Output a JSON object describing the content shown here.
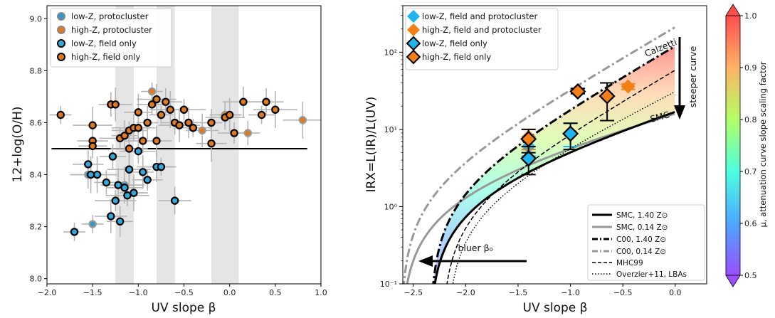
{
  "chart_data": [
    {
      "type": "scatter",
      "xlabel": "UV slope β",
      "ylabel": "12+log(O/H)",
      "xlim": [
        -2.0,
        1.0
      ],
      "ylim": [
        7.98,
        9.05
      ],
      "xticks": [
        -2.0,
        -1.5,
        -1.0,
        -0.5,
        0.0,
        0.5,
        1.0
      ],
      "yticks": [
        8.0,
        8.2,
        8.4,
        8.6,
        8.8,
        9.0
      ],
      "xtick_labels": [
        "−2.0",
        "−1.5",
        "−1.0",
        "−0.5",
        "0.0",
        "0.5",
        "1.0"
      ],
      "ytick_labels": [
        "8.0",
        "8.2",
        "8.4",
        "8.6",
        "8.8",
        "9.0"
      ],
      "hline": {
        "y": 8.5,
        "xrange": [
          -1.95,
          0.85
        ]
      },
      "bands": [
        [
          -1.25,
          -1.05
        ],
        [
          -0.8,
          -0.6
        ],
        [
          -0.2,
          0.1
        ]
      ],
      "legend_position": "upper left",
      "legend": [
        {
          "label": "low-Z, protocluster",
          "fill": "#3399cc",
          "edge": "#888888"
        },
        {
          "label": "high-Z, protocluster",
          "fill": "#e07a1f",
          "edge": "#888888"
        },
        {
          "label": "low-Z, field only",
          "fill": "#33aadd",
          "edge": "#000000"
        },
        {
          "label": "high-Z, field only",
          "fill": "#e07a1f",
          "edge": "#000000"
        }
      ],
      "series": [
        {
          "name": "low-Z, protocluster",
          "x": [
            -1.5,
            -1.55,
            -1.15,
            -1.05,
            -1.1
          ],
          "y": [
            8.21,
            8.4,
            8.36,
            8.33,
            8.42
          ]
        },
        {
          "name": "high-Z, protocluster",
          "x": [
            -0.85,
            -0.05,
            0.8,
            0.2,
            -0.3,
            -0.55
          ],
          "y": [
            8.72,
            8.63,
            8.61,
            8.56,
            8.57,
            8.59
          ]
        },
        {
          "name": "low-Z, field only",
          "x": [
            -1.7,
            -1.55,
            -1.45,
            -1.35,
            -1.3,
            -1.25,
            -1.2,
            -1.15,
            -1.1,
            -1.05,
            -1.0,
            -0.95,
            -0.9,
            -0.8,
            -0.75,
            -0.6,
            -1.52,
            -1.28,
            -1.22,
            -1.12
          ],
          "y": [
            8.18,
            8.44,
            8.4,
            8.37,
            8.24,
            8.3,
            8.22,
            8.35,
            8.42,
            8.33,
            8.49,
            8.41,
            8.38,
            8.43,
            8.43,
            8.3,
            8.4,
            8.47,
            8.36,
            8.32
          ]
        },
        {
          "name": "high-Z, field only",
          "x": [
            -1.85,
            -1.5,
            -1.5,
            -1.3,
            -1.25,
            -1.2,
            -1.15,
            -1.1,
            -1.05,
            -1.0,
            -0.95,
            -0.9,
            -0.85,
            -0.8,
            -0.75,
            -0.7,
            -0.65,
            -0.6,
            -0.55,
            -0.5,
            -0.45,
            -0.4,
            -0.2,
            -0.2,
            -0.05,
            0.0,
            0.05,
            0.15,
            0.35,
            0.4,
            0.5,
            -1.5,
            -1.1,
            -1.0,
            -0.8
          ],
          "y": [
            8.63,
            8.53,
            8.59,
            8.67,
            8.67,
            8.54,
            8.55,
            8.57,
            8.58,
            8.64,
            8.53,
            8.6,
            8.67,
            8.69,
            8.63,
            8.68,
            8.65,
            8.6,
            8.59,
            8.65,
            8.6,
            8.58,
            8.6,
            8.52,
            8.62,
            8.63,
            8.56,
            8.68,
            8.63,
            8.68,
            8.65,
            8.51,
            8.5,
            8.58,
            8.53
          ]
        }
      ]
    },
    {
      "type": "line",
      "xlabel": "UV slope β",
      "ylabel": "IRX=L(IR)/L(UV)",
      "xlim": [
        -2.6,
        0.3
      ],
      "ylim": [
        0.1,
        400
      ],
      "yscale": "log",
      "xticks": [
        -2.5,
        -2.0,
        -1.5,
        -1.0,
        -0.5,
        0.0
      ],
      "xtick_labels": [
        "−2.5",
        "−2.0",
        "−1.5",
        "−1.0",
        "−0.5",
        "0.0"
      ],
      "yticks": [
        0.1,
        1,
        10,
        100
      ],
      "ytick_labels": [
        "10⁻¹",
        "10⁰",
        "10¹",
        "10²"
      ],
      "colorbar": {
        "label": "μ, attenuation curve slope scaling factor",
        "range": [
          0.5,
          1.0
        ],
        "ticks": [
          "0.5",
          "0.6",
          "0.7",
          "0.8",
          "0.9",
          "1.0"
        ]
      },
      "curve_labels": [
        "Calzetti",
        "SMC"
      ],
      "annotations": [
        "steeper curve",
        "bluer β₀"
      ],
      "legend_top": [
        {
          "label": "low-Z, field and protocluster",
          "color": "#1eb4ee",
          "edge": "none"
        },
        {
          "label": "high-Z, field and protocluster",
          "color": "#f57f17",
          "edge": "none"
        },
        {
          "label": "low-Z, field only",
          "color": "#1eb4ee",
          "edge": "#000000"
        },
        {
          "label": "high-Z, field only",
          "color": "#f57f17",
          "edge": "#000000"
        }
      ],
      "legend_bottom": [
        {
          "label": "SMC, 1.40 Z⊙",
          "style": "solid",
          "color": "#000000"
        },
        {
          "label": "SMC, 0.14 Z⊙",
          "style": "solid",
          "color": "#999999"
        },
        {
          "label": "C00, 1.40 Z⊙",
          "style": "dashdot",
          "color": "#000000"
        },
        {
          "label": "C00, 0.14 Z⊙",
          "style": "dashdot",
          "color": "#999999"
        },
        {
          "label": "MHC99",
          "style": "dashed",
          "color": "#000000"
        },
        {
          "label": "Overzier+11, LBAs",
          "style": "dotted",
          "color": "#000000"
        }
      ],
      "points": [
        {
          "name": "low-Z, field and protocluster",
          "x": -1.4,
          "y": 6.0,
          "yerr": [
            4.5,
            8.0
          ]
        },
        {
          "name": "low-Z, field and protocluster",
          "x": -1.0,
          "y": 9.0,
          "yerr": [
            6.0,
            12.0
          ]
        },
        {
          "name": "high-Z, field and protocluster",
          "x": -1.4,
          "y": 8.0,
          "yerr": [
            5.5,
            10.0
          ]
        },
        {
          "name": "high-Z, field and protocluster",
          "x": -0.93,
          "y": 31.0,
          "yerr": [
            29.0,
            33.0
          ]
        },
        {
          "name": "high-Z, field and protocluster",
          "x": -0.45,
          "y": 36.0,
          "yerr": [
            33.0,
            39.0
          ]
        },
        {
          "name": "low-Z, field only",
          "x": -1.4,
          "y": 4.2,
          "yerr": [
            2.6,
            6.0
          ]
        },
        {
          "name": "low-Z, field only",
          "x": -1.0,
          "y": 8.8,
          "yerr": [
            5.5,
            12.0
          ]
        },
        {
          "name": "high-Z, field only",
          "x": -1.4,
          "y": 7.5,
          "yerr": [
            5.0,
            10.0
          ]
        },
        {
          "name": "high-Z, field only",
          "x": -0.93,
          "y": 31.0,
          "yerr": [
            29.0,
            34.0
          ]
        },
        {
          "name": "high-Z, field only",
          "x": -0.65,
          "y": 27.0,
          "yerr": [
            13.0,
            40.0
          ]
        }
      ]
    }
  ]
}
